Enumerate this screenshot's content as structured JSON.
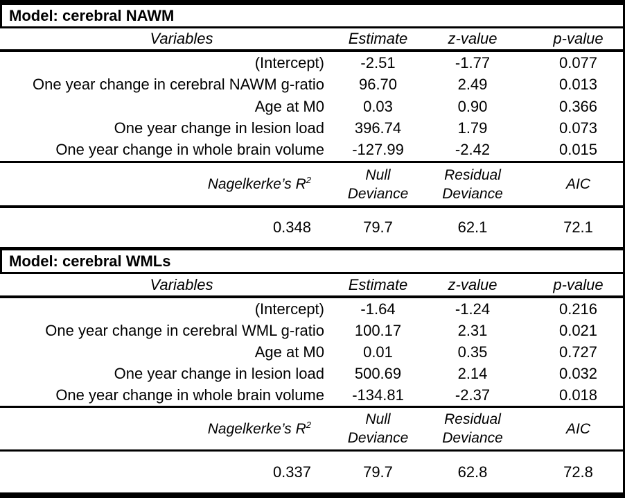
{
  "colors": {
    "text": "#000000",
    "border": "#000000",
    "background": "#ffffff"
  },
  "models": [
    {
      "title": "Model: cerebral NAWM",
      "columns": {
        "variables": "Variables",
        "estimate": "Estimate",
        "z": "z-value",
        "p": "p-value"
      },
      "rows": [
        {
          "variable": "(Intercept)",
          "estimate": "-2.51",
          "z": "-1.77",
          "p": "0.077"
        },
        {
          "variable": "One year change in cerebral NAWM g-ratio",
          "estimate": "96.70",
          "z": "2.49",
          "p": "0.013"
        },
        {
          "variable": "Age at M0",
          "estimate": "0.03",
          "z": "0.90",
          "p": "0.366"
        },
        {
          "variable": "One year change in lesion load",
          "estimate": "396.74",
          "z": "1.79",
          "p": "0.073"
        },
        {
          "variable": "One year change in whole brain volume",
          "estimate": "-127.99",
          "z": "-2.42",
          "p": "0.015"
        }
      ],
      "fit": {
        "r2_label": "Nagelkerke’s R",
        "r2_sup": "2",
        "null_line1": "Null",
        "null_line2": "Deviance",
        "residual_line1": "Residual",
        "residual_line2": "Deviance",
        "aic_label": "AIC",
        "r2": "0.348",
        "null_deviance": "79.7",
        "residual_deviance": "62.1",
        "aic": "72.1"
      }
    },
    {
      "title": "Model: cerebral WMLs",
      "columns": {
        "variables": "Variables",
        "estimate": "Estimate",
        "z": "z-value",
        "p": "p-value"
      },
      "rows": [
        {
          "variable": "(Intercept)",
          "estimate": "-1.64",
          "z": "-1.24",
          "p": "0.216"
        },
        {
          "variable": "One year change in cerebral WML g-ratio",
          "estimate": "100.17",
          "z": "2.31",
          "p": "0.021"
        },
        {
          "variable": "Age at M0",
          "estimate": "0.01",
          "z": "0.35",
          "p": "0.727"
        },
        {
          "variable": "One year change in lesion load",
          "estimate": "500.69",
          "z": "2.14",
          "p": "0.032"
        },
        {
          "variable": "One year change in whole brain volume",
          "estimate": "-134.81",
          "z": "-2.37",
          "p": "0.018"
        }
      ],
      "fit": {
        "r2_label": "Nagelkerke’s R",
        "r2_sup": "2",
        "null_line1": "Null",
        "null_line2": "Deviance",
        "residual_line1": "Residual",
        "residual_line2": "Deviance",
        "aic_label": "AIC",
        "r2": "0.337",
        "null_deviance": "79.7",
        "residual_deviance": "62.8",
        "aic": "72.8"
      }
    }
  ]
}
